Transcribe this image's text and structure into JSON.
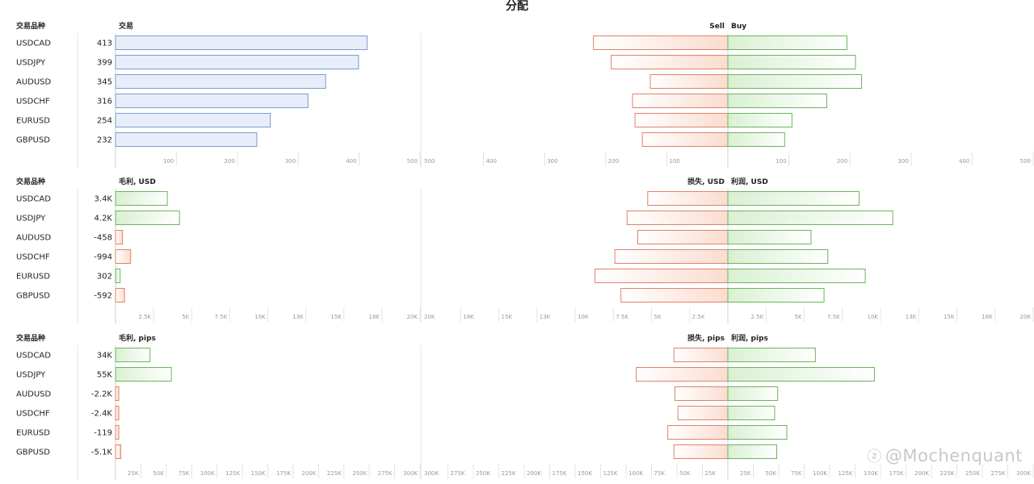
{
  "title": "分配",
  "watermark": "@Mochenquant",
  "colors": {
    "neutral_fill": "#e8eef9",
    "neutral_stroke": "#7d9bd1",
    "buy_stroke": "#6cb45c",
    "buy_fill": "#eaf6e5",
    "sell_stroke": "#e0826a",
    "sell_fill": "#fbe6de",
    "grid": "#e4e4e4",
    "tick_text": "#999999"
  },
  "chart_data": [
    {
      "type": "bar",
      "symbol_header": "交易品种",
      "left_header": "交易",
      "sell_header": "Sell",
      "buy_header": "Buy",
      "categories": [
        "USDCAD",
        "USDJPY",
        "AUDUSD",
        "USDCHF",
        "EURUSD",
        "GBPUSD"
      ],
      "value_labels": [
        "413",
        "399",
        "345",
        "316",
        "254",
        "232"
      ],
      "values": [
        413,
        399,
        345,
        316,
        254,
        232
      ],
      "left_coloring": "neutral",
      "left_max": 500,
      "left_ticks": [
        "100",
        "200",
        "300",
        "400",
        "500"
      ],
      "sell_values": [
        220,
        191,
        127,
        156,
        152,
        140
      ],
      "buy_values": [
        195,
        209,
        219,
        162,
        105,
        93
      ],
      "split_max": 500,
      "sell_ticks": [
        "500",
        "400",
        "300",
        "200",
        "100"
      ],
      "buy_ticks": [
        "100",
        "200",
        "300",
        "400",
        "500"
      ]
    },
    {
      "type": "bar",
      "symbol_header": "交易品种",
      "left_header": "毛利, USD",
      "sell_header": "损失, USD",
      "buy_header": "利润, USD",
      "categories": [
        "USDCAD",
        "USDJPY",
        "AUDUSD",
        "USDCHF",
        "EURUSD",
        "GBPUSD"
      ],
      "value_labels": [
        "3.4K",
        "4.2K",
        "-458",
        "-994",
        "302",
        "-592"
      ],
      "values": [
        3400,
        4200,
        -458,
        -994,
        302,
        -592
      ],
      "left_coloring": "sign",
      "left_max": 20000,
      "left_ticks": [
        "2.5K",
        "5K",
        "7.5K",
        "10K",
        "13K",
        "15K",
        "18K",
        "20K"
      ],
      "sell_values": [
        5250,
        6600,
        5900,
        7400,
        8700,
        7000
      ],
      "buy_values": [
        8600,
        10800,
        5450,
        6550,
        9000,
        6300
      ],
      "split_max": 20000,
      "sell_ticks": [
        "20K",
        "18K",
        "15K",
        "13K",
        "10K",
        "7.5K",
        "5K",
        "2.5K"
      ],
      "buy_ticks": [
        "2.5K",
        "5K",
        "7.5K",
        "10K",
        "13K",
        "15K",
        "18K",
        "20K"
      ]
    },
    {
      "type": "bar",
      "symbol_header": "交易品种",
      "left_header": "毛利, pips",
      "sell_header": "损失, pips",
      "buy_header": "利润, pips",
      "categories": [
        "USDCAD",
        "USDJPY",
        "AUDUSD",
        "USDCHF",
        "EURUSD",
        "GBPUSD"
      ],
      "value_labels": [
        "34K",
        "55K",
        "-2.2K",
        "-2.4K",
        "-119",
        "-5.1K"
      ],
      "values": [
        34000,
        55000,
        -2200,
        -2400,
        -119,
        -5100
      ],
      "left_coloring": "sign",
      "left_max": 300000,
      "left_ticks": [
        "25K",
        "50K",
        "75K",
        "100K",
        "125K",
        "150K",
        "175K",
        "200K",
        "225K",
        "250K",
        "275K",
        "300K"
      ],
      "sell_values": [
        53000,
        90000,
        52000,
        49000,
        59000,
        53000
      ],
      "buy_values": [
        86000,
        144000,
        49000,
        46000,
        58000,
        48000
      ],
      "split_max": 300000,
      "sell_ticks": [
        "300K",
        "275K",
        "250K",
        "225K",
        "200K",
        "175K",
        "150K",
        "125K",
        "100K",
        "75K",
        "50K",
        "25K"
      ],
      "buy_ticks": [
        "25K",
        "50K",
        "75K",
        "100K",
        "125K",
        "150K",
        "175K",
        "200K",
        "225K",
        "250K",
        "275K",
        "300K"
      ]
    }
  ]
}
